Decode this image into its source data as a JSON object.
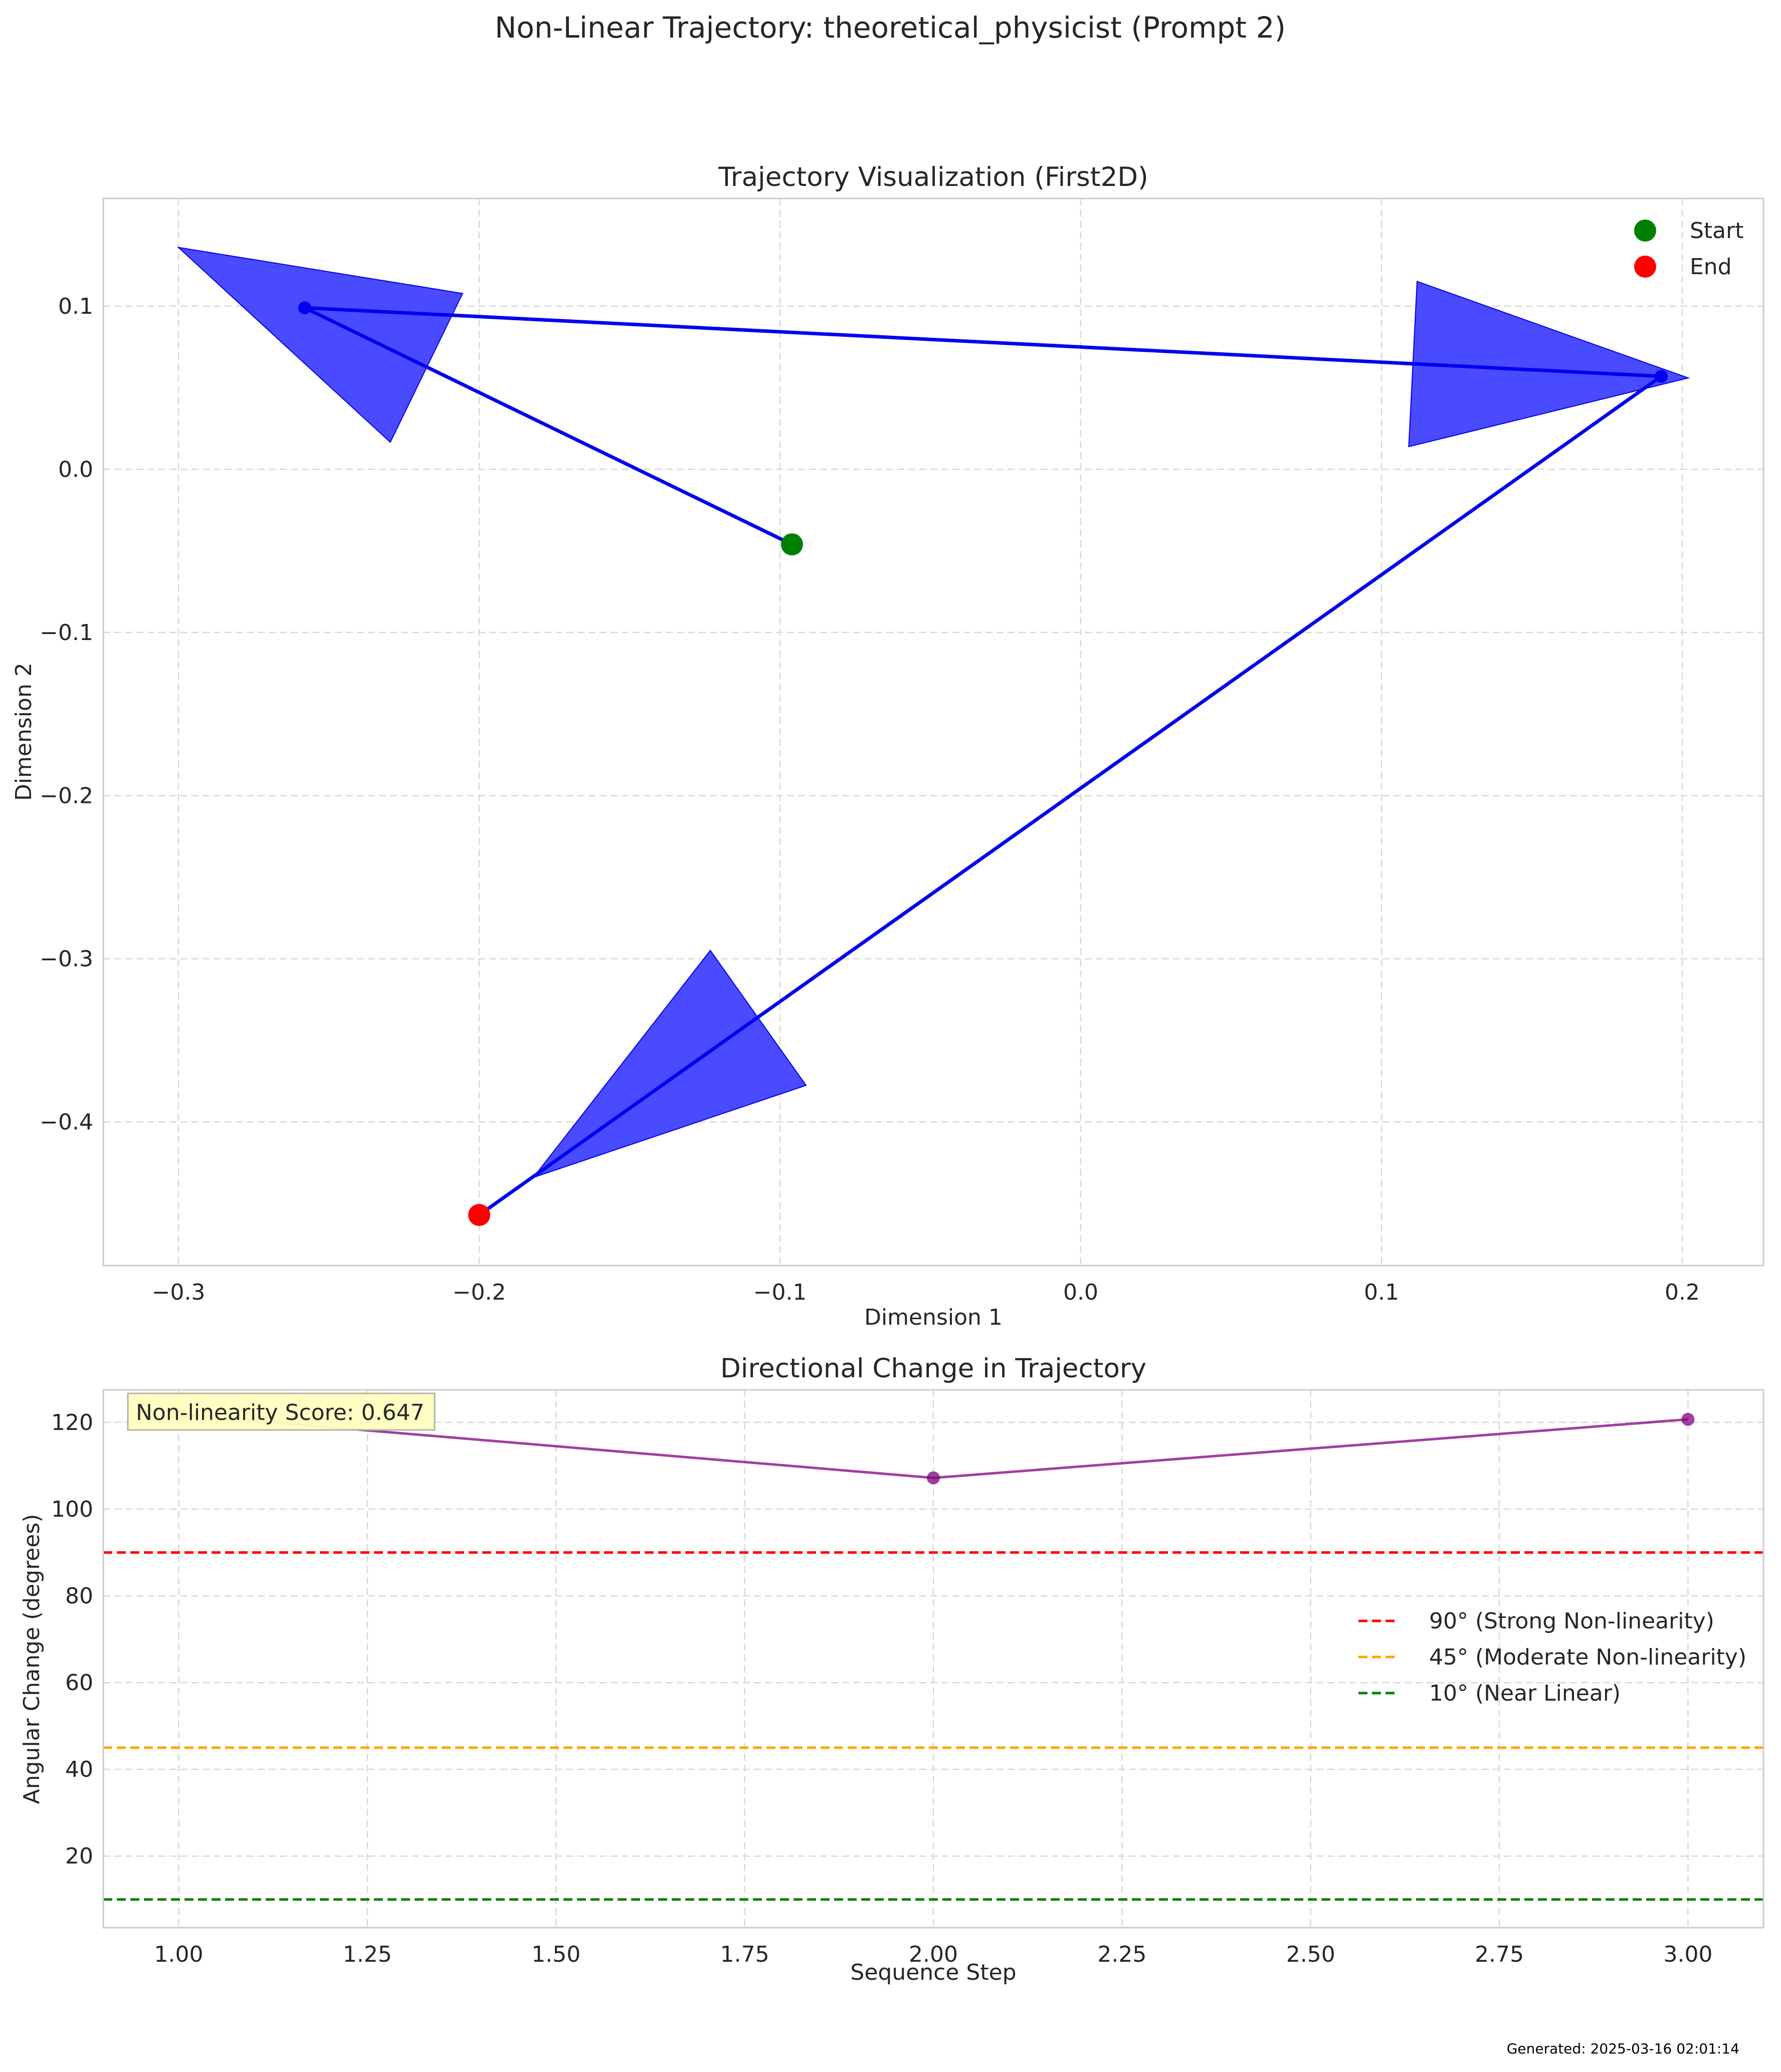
{
  "figure": {
    "suptitle": "Non-Linear Trajectory: theoretical_physicist (Prompt 2)",
    "footer": "Generated: 2025-03-16 02:01:14"
  },
  "colors": {
    "trajectory": "#0000ee",
    "arrow_fill": "#3b3bff",
    "start": "#008000",
    "end": "#ff0000",
    "angle_line": "#800080",
    "ref_90": "#ff0000",
    "ref_45": "#ffa500",
    "ref_10": "#008000",
    "score_box": "#ffffc0"
  },
  "chart_data": [
    {
      "type": "line",
      "title": "Trajectory Visualization (First2D)",
      "xlabel": "Dimension 1",
      "ylabel": "Dimension 2",
      "xlim": [
        -0.325,
        0.227
      ],
      "ylim": [
        -0.488,
        0.166
      ],
      "xticks": [
        -0.3,
        -0.2,
        -0.1,
        0.0,
        0.1,
        0.2
      ],
      "xtick_labels": [
        "−0.3",
        "−0.2",
        "−0.1",
        "0.0",
        "0.1",
        "0.2"
      ],
      "yticks": [
        0.1,
        0.0,
        -0.1,
        -0.2,
        -0.3,
        -0.4
      ],
      "ytick_labels": [
        "0.1",
        "0.0",
        "−0.1",
        "−0.2",
        "−0.3",
        "−0.4"
      ],
      "grid": true,
      "legend_position": "top-right",
      "series": [
        {
          "name": "trajectory",
          "points": [
            {
              "x": -0.096,
              "y": -0.046
            },
            {
              "x": -0.258,
              "y": 0.099
            },
            {
              "x": 0.193,
              "y": 0.057
            },
            {
              "x": -0.2,
              "y": -0.457
            }
          ]
        }
      ],
      "arrows": [
        {
          "tip_x": -0.3,
          "tip_y": 0.136
        },
        {
          "tip_x": 0.202,
          "tip_y": 0.056
        },
        {
          "tip_x": -0.182,
          "tip_y": -0.434
        }
      ],
      "markers": [
        {
          "label": "Start",
          "x": -0.096,
          "y": -0.046
        },
        {
          "label": "End",
          "x": -0.2,
          "y": -0.457
        }
      ]
    },
    {
      "type": "line",
      "title": "Directional Change in Trajectory",
      "xlabel": "Sequence Step",
      "ylabel": "Angular Change (degrees)",
      "xlim": [
        0.9,
        3.1
      ],
      "ylim": [
        3.5,
        127.5
      ],
      "xticks": [
        1.0,
        1.25,
        1.5,
        1.75,
        2.0,
        2.25,
        2.5,
        2.75,
        3.0
      ],
      "xtick_labels": [
        "1.00",
        "1.25",
        "1.50",
        "1.75",
        "2.00",
        "2.25",
        "2.50",
        "2.75",
        "3.00"
      ],
      "yticks": [
        120,
        100,
        80,
        60,
        40,
        20
      ],
      "ytick_labels": [
        "120",
        "100",
        "80",
        "60",
        "40",
        "20"
      ],
      "grid": true,
      "legend_position": "center-right",
      "series": [
        {
          "name": "",
          "x": [
            1,
            2,
            3
          ],
          "values": [
            121.8,
            107.2,
            120.7
          ]
        }
      ],
      "reference_lines": [
        {
          "label": "90° (Strong Non-linearity)",
          "y": 90,
          "color_key": "ref_90"
        },
        {
          "label": "45° (Moderate Non-linearity)",
          "y": 45,
          "color_key": "ref_45"
        },
        {
          "label": "10° (Near Linear)",
          "y": 10,
          "color_key": "ref_10"
        }
      ],
      "annotation": "Non-linearity Score: 0.647"
    }
  ]
}
